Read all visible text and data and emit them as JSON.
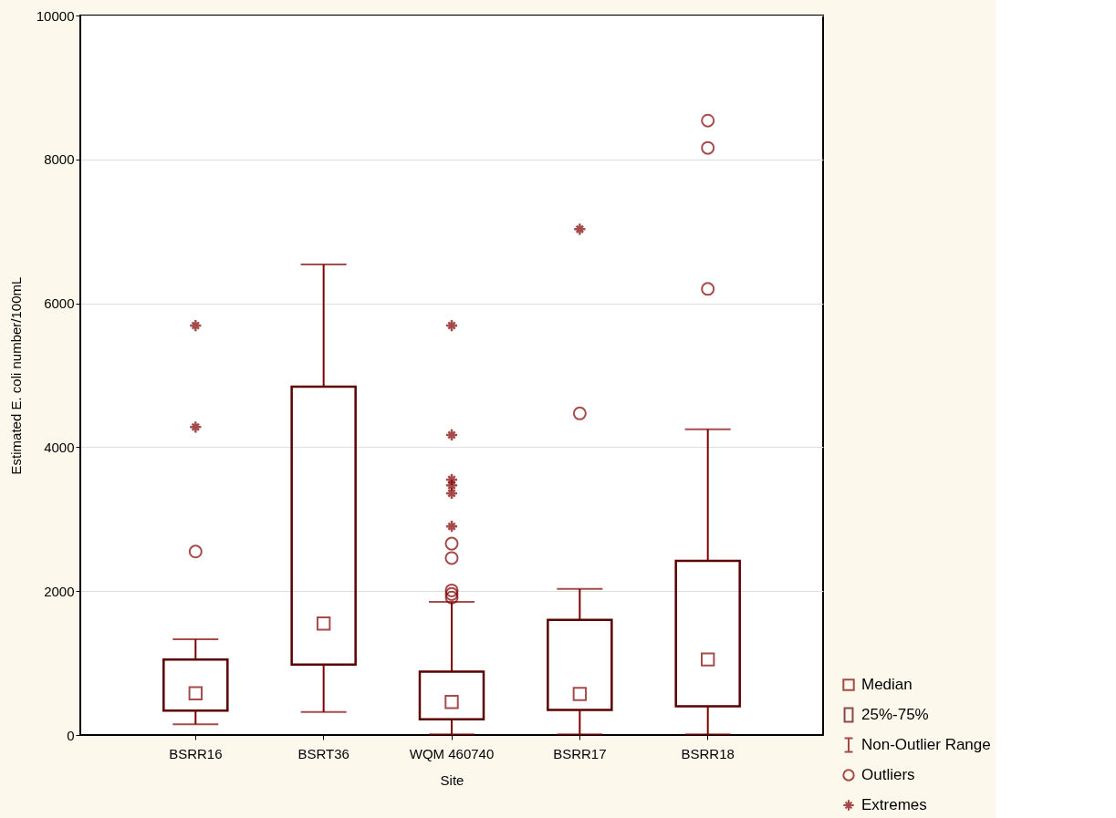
{
  "chart_data": {
    "type": "box",
    "xlabel": "Site",
    "ylabel": "Estimated E. coli number/100mL",
    "categories": [
      "BSRR16",
      "BSRT36",
      "WQM 460740",
      "BSRR17",
      "BSRR18"
    ],
    "ylim": [
      0,
      10000
    ],
    "yticks": [
      0,
      2000,
      4000,
      6000,
      8000,
      10000
    ],
    "grid": "y",
    "legend": "bottom right",
    "annotations": [
      "Median",
      "25%-75%",
      "Non-Outlier Range",
      "Outliers"
    ],
    "series": [
      {
        "type": "box",
        "color": "#800000",
        "boxes": [
          {
            "low": 150,
            "q1": 340,
            "median": 580,
            "q3": 1050,
            "high": 1330,
            "outliers": [
              2550
            ]
          },
          {
            "low": 320,
            "q1": 980,
            "median": 1550,
            "q3": 4840,
            "high": 6540
          },
          {
            "low": 10,
            "q1": 220,
            "median": 460,
            "q3": 880,
            "high": 1850,
            "outliers": [
              2660,
              2460,
              2010,
              1960,
              1910
            ]
          },
          {
            "low": 10,
            "q1": 350,
            "median": 570,
            "q3": 1600,
            "high": 2030,
            "outliers": [
              4470
            ]
          },
          {
            "low": 10,
            "q1": 400,
            "median": 1050,
            "q3": 2420,
            "high": 4250,
            "outliers": [
              8540,
              8160,
              6200
            ]
          }
        ]
      },
      {
        "type": "scatter",
        "name": "Extremes",
        "color": "#800000",
        "marker": "cross",
        "x": [
          "BSRR16",
          "BSRR16",
          "WQM 460740",
          "WQM 460740",
          "WQM 460740",
          "WQM 460740",
          "WQM 460740",
          "WQM 460740",
          "BSRR17"
        ],
        "values": [
          5690,
          4280,
          5690,
          4170,
          3550,
          3470,
          3360,
          2900,
          7030
        ]
      }
    ]
  }
}
